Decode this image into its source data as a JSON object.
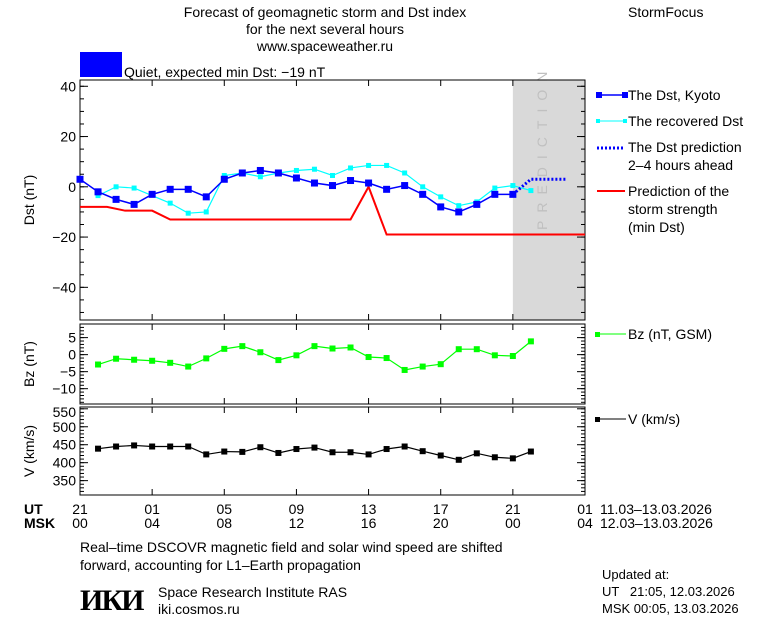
{
  "header": {
    "title_lines": [
      "Forecast of geomagnetic storm and Dst index",
      "for the next several hours",
      "www.spaceweather.ru"
    ],
    "brand": "StormFocus",
    "status_text": "Quiet, expected min Dst: −19 nT",
    "status_color": "#0000ff"
  },
  "legend": {
    "dst_kyoto": "The Dst, Kyoto",
    "recovered": "The recovered Dst",
    "prediction_lines": [
      "The Dst prediction",
      "2–4 hours ahead"
    ],
    "storm_lines": [
      "Prediction of the",
      "storm strength",
      "(min Dst)"
    ],
    "bz": "Bz (nT, GSM)",
    "v": "V (km/s)"
  },
  "time_axis": {
    "ut_label": "UT",
    "msk_label": "MSK",
    "ut_ticks": [
      "21",
      "01",
      "05",
      "09",
      "13",
      "17",
      "21",
      "01"
    ],
    "msk_ticks": [
      "00",
      "04",
      "08",
      "12",
      "16",
      "20",
      "00",
      "04"
    ],
    "ut_range": "11.03–13.03.2026",
    "msk_range": "12.03–13.03.2026"
  },
  "footer": {
    "note_lines": [
      "Real–time DSCOVR magnetic field and solar wind speed are shifted",
      "forward, accounting for L1–Earth propagation"
    ],
    "institute": "Space Research Institute RAS",
    "site": "iki.cosmos.ru",
    "logo_text": "ИКИ",
    "updated_label": "Updated at:",
    "updated_ut": "UT   21:05, 12.03.2026",
    "updated_msk": "MSK 00:05, 13.03.2026"
  },
  "chart_data": [
    {
      "type": "line",
      "ylabel": "Dst (nT)",
      "xlim_hours": [
        0,
        28
      ],
      "ylim": [
        -53,
        42.5
      ],
      "yticks": [
        "40",
        "20",
        "0",
        "−20",
        "−40"
      ],
      "prediction_band_label": "PREDICTION",
      "prediction_band_hours": [
        24,
        28
      ],
      "colors": {
        "dst": "#0000ff",
        "recovered": "#00ffff",
        "prediction": "#0000ff",
        "storm": "#ff0000",
        "band": "#d9d9d9"
      },
      "series": [
        {
          "name": "The Dst, Kyoto",
          "x": [
            0,
            1,
            2,
            3,
            4,
            5,
            6,
            7,
            8,
            9,
            10,
            11,
            12,
            13,
            14,
            15,
            16,
            17,
            18,
            19,
            20,
            21,
            22,
            23,
            24
          ],
          "values": [
            3,
            -2,
            -5,
            -7,
            -3,
            -1,
            -1,
            -4,
            3,
            5.5,
            6.5,
            5.5,
            3.5,
            1.5,
            0.5,
            2.5,
            1.5,
            -1,
            0.5,
            -3,
            -8,
            -10,
            -7,
            -3,
            -3
          ]
        },
        {
          "name": "The recovered Dst",
          "x": [
            1,
            2,
            3,
            5,
            6,
            7,
            8,
            9,
            10,
            11,
            12,
            13,
            14,
            15,
            16,
            17,
            18,
            19,
            20,
            21,
            22,
            23,
            24,
            25
          ],
          "values": [
            -3.5,
            0,
            -0.5,
            -6.5,
            -10.5,
            -10,
            4.5,
            5.5,
            4,
            5.5,
            6.5,
            7,
            4.5,
            7.5,
            8.5,
            8.5,
            5.5,
            0,
            -4,
            -7.5,
            -6,
            -0.5,
            0.5,
            -1.5
          ]
        },
        {
          "name": "The Dst prediction 2–4 hours ahead",
          "x": [
            24,
            25,
            27
          ],
          "values": [
            -3,
            3,
            3
          ]
        },
        {
          "name": "Prediction of the storm strength (min Dst)",
          "x": [
            0,
            1.5,
            2.5,
            4,
            5,
            15,
            16,
            17,
            28
          ],
          "values": [
            -8,
            -8,
            -9.5,
            -9.5,
            -13,
            -13,
            0,
            -19,
            -19
          ]
        }
      ]
    },
    {
      "type": "line",
      "ylabel": "Bz (nT)",
      "ylim": [
        -14.5,
        9
      ],
      "yticks": [
        "5",
        "0",
        "−5",
        "−10"
      ],
      "color": "#00ff00",
      "series": [
        {
          "name": "Bz (nT, GSM)",
          "x": [
            1,
            2,
            3,
            4,
            5,
            6,
            7,
            8,
            9,
            10,
            11,
            12,
            13,
            14,
            15,
            16,
            17,
            18,
            19,
            20,
            21,
            22,
            23,
            24,
            25
          ],
          "values": [
            -2.9,
            -1.2,
            -1.5,
            -1.8,
            -2.4,
            -3.5,
            -1.1,
            1.7,
            2.5,
            0.7,
            -1.6,
            -0.2,
            2.5,
            1.8,
            2.1,
            -0.7,
            -1,
            -4.5,
            -3.5,
            -2.8,
            1.6,
            1.6,
            -0.2,
            -0.4,
            3.9
          ]
        }
      ]
    },
    {
      "type": "line",
      "ylabel": "V (km/s)",
      "ylim": [
        310,
        555
      ],
      "yticks": [
        "550",
        "500",
        "450",
        "400",
        "350"
      ],
      "color": "#000000",
      "series": [
        {
          "name": "V (km/s)",
          "x": [
            1,
            2,
            3,
            4,
            5,
            6,
            7,
            8,
            9,
            10,
            11,
            12,
            13,
            14,
            15,
            16,
            17,
            18,
            19,
            20,
            21,
            22,
            23,
            24,
            25
          ],
          "values": [
            439,
            445,
            448,
            445,
            445,
            445,
            423,
            431,
            430,
            443,
            427,
            438,
            442,
            429,
            429,
            423,
            438,
            445,
            432,
            420,
            408,
            426,
            415,
            412,
            431
          ]
        }
      ]
    }
  ]
}
